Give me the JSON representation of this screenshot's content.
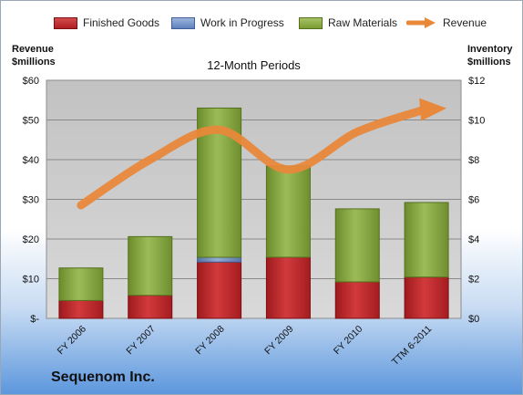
{
  "legend": [
    {
      "label": "Finished Goods",
      "icon": "finished-goods-swatch"
    },
    {
      "label": "Work in Progress",
      "icon": "work-in-progress-swatch"
    },
    {
      "label": "Raw Materials",
      "icon": "raw-materials-swatch"
    },
    {
      "label": "Revenue",
      "icon": "revenue-arrow-swatch"
    }
  ],
  "left_axis_title": [
    "Revenue",
    "$millions"
  ],
  "right_axis_title": [
    "Inventory",
    "$millions"
  ],
  "company": "Sequenom Inc.",
  "colors": {
    "finished_goods": "#c0282b",
    "work_in_progress": "#6f8fc8",
    "raw_materials": "#8aab42",
    "revenue": "#e8883a",
    "plot_background": "#c4c4c4"
  },
  "chart_data": {
    "type": "bar",
    "stacked": true,
    "title": "12-Month Periods",
    "categories": [
      "FY 2006",
      "FY 2007",
      "FY 2008",
      "FY 2009",
      "FY 2010",
      "TTM 6-2011"
    ],
    "series": [
      {
        "name": "Finished Goods",
        "axis": "left",
        "values": [
          4.5,
          5.8,
          14.2,
          15.4,
          9.2,
          10.4
        ]
      },
      {
        "name": "Work in Progress",
        "axis": "left",
        "values": [
          0,
          0,
          1.2,
          0,
          0,
          0
        ]
      },
      {
        "name": "Raw Materials",
        "axis": "left",
        "values": [
          8.2,
          14.8,
          37.6,
          23.0,
          18.4,
          18.8
        ]
      },
      {
        "name": "Revenue",
        "type": "line",
        "axis": "right",
        "values": [
          5.7,
          8.0,
          9.5,
          7.5,
          9.4,
          10.5
        ]
      }
    ],
    "left_axis": {
      "ylim": [
        0,
        60
      ],
      "ticks": [
        "$-",
        "$10",
        "$20",
        "$30",
        "$40",
        "$50",
        "$60"
      ]
    },
    "right_axis": {
      "ylim": [
        0,
        12
      ],
      "ticks": [
        "$0",
        "$2",
        "$4",
        "$6",
        "$8",
        "$10",
        "$12"
      ]
    },
    "grid": true,
    "legend_position": "top"
  }
}
